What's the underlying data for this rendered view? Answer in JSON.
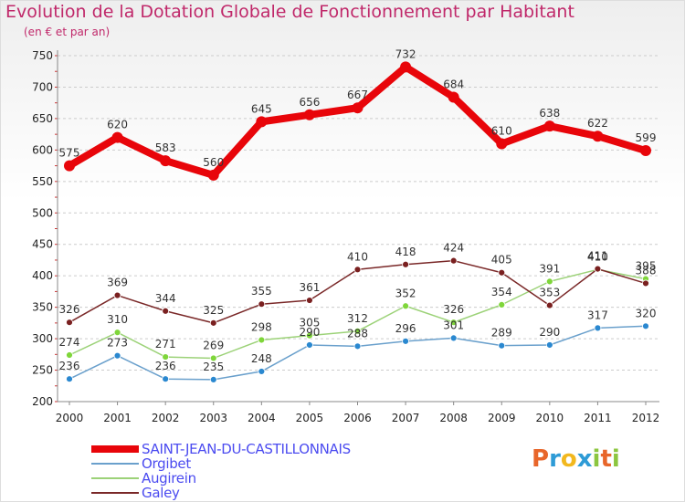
{
  "title": "Evolution de la Dotation Globale de Fonctionnement par Habitant",
  "subtitle": "(en € et par an)",
  "colors": {
    "title": "#c0286a",
    "legend_text": "#4b4bf0",
    "grid": "#cccccc",
    "axis_text": "#222222",
    "label_text": "#333333"
  },
  "logo": {
    "letters": [
      "P",
      "r",
      "o",
      "x",
      "i",
      "t",
      "i"
    ],
    "colors": [
      "#e8662a",
      "#2e9bd6",
      "#f2b81e",
      "#2e9bd6",
      "#8cc63f",
      "#e8662a",
      "#8cc63f"
    ]
  },
  "chart_data": {
    "type": "line",
    "title": "Evolution de la Dotation Globale de Fonctionnement par Habitant",
    "subtitle": "(en € et par an)",
    "x": [
      "2000",
      "2001",
      "2002",
      "2003",
      "2004",
      "2005",
      "2006",
      "2007",
      "2008",
      "2009",
      "2010",
      "2011",
      "2012"
    ],
    "ylim": [
      200,
      750
    ],
    "yticks": [
      "200",
      "250",
      "300",
      "350",
      "400",
      "450",
      "500",
      "550",
      "600",
      "650",
      "700",
      "750"
    ],
    "grid": "horizontal dashed",
    "legend_position": "bottom-left",
    "series": [
      {
        "name": "SAINT-JEAN-DU-CASTILLONNAIS",
        "values": [
          575,
          620,
          583,
          560,
          645,
          656,
          667,
          732,
          684,
          610,
          638,
          622,
          599
        ],
        "color": "#e8050a",
        "marker": "#e8050a",
        "bold": true
      },
      {
        "name": "Orgibet",
        "values": [
          236,
          273,
          236,
          235,
          248,
          290,
          288,
          296,
          301,
          289,
          290,
          317,
          320
        ],
        "color": "#6aa0cc",
        "marker": "#2a88d0",
        "bold": false
      },
      {
        "name": "Augirein",
        "values": [
          274,
          310,
          271,
          269,
          298,
          305,
          312,
          352,
          326,
          354,
          391,
          410,
          395
        ],
        "color": "#9cd278",
        "marker": "#7fd63a",
        "bold": false
      },
      {
        "name": "Galey",
        "values": [
          326,
          369,
          344,
          325,
          355,
          361,
          410,
          418,
          424,
          405,
          353,
          411,
          388
        ],
        "color": "#7a2828",
        "marker": "#7a2020",
        "bold": false
      }
    ],
    "data_labels": [
      [
        "575",
        "620",
        "583",
        "560",
        "645",
        "656",
        "667",
        "732",
        "684",
        "610",
        "638",
        "622",
        "599"
      ],
      [
        "236",
        "273",
        "236",
        "235",
        "248",
        "290",
        "288",
        "296",
        "301",
        "289",
        "290",
        "317",
        "320"
      ],
      [
        "274",
        "310",
        "271",
        "269",
        "298",
        "305",
        "312",
        "352",
        "326",
        "354",
        "391",
        "410",
        "395"
      ],
      [
        "326",
        "369",
        "344",
        "325",
        "355",
        "361",
        "410",
        "418",
        "424",
        "405",
        "353",
        "411",
        "388"
      ]
    ]
  }
}
